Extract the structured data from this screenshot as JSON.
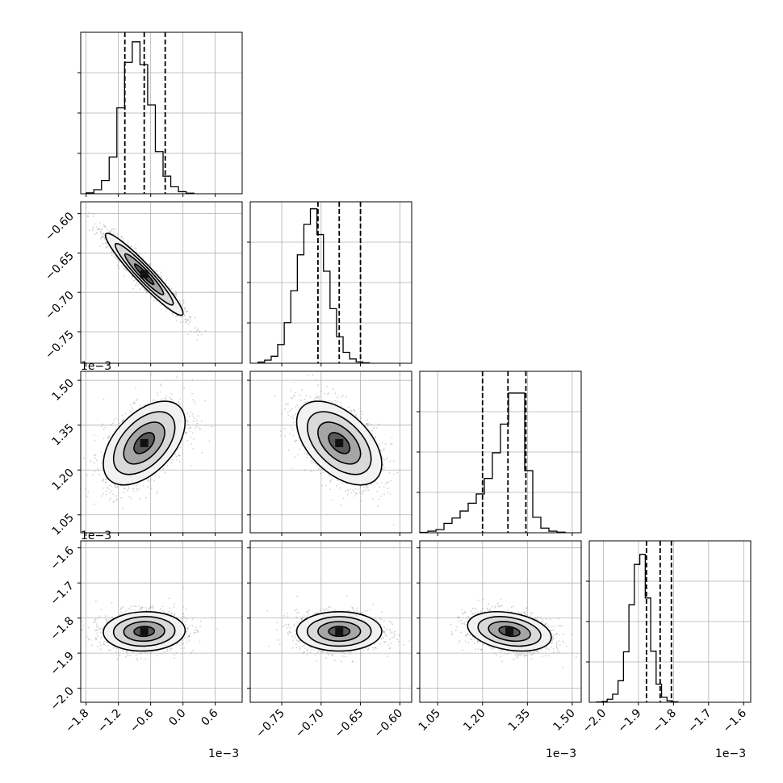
{
  "chart_data": {
    "type": "corner",
    "grid": true,
    "params": [
      {
        "xlim": [
          -1.9,
          1.1
        ],
        "ticks": [
          -1.8,
          -1.2,
          -0.6,
          0.0,
          0.6
        ],
        "tick_labels": [
          "−1.8",
          "−1.2",
          "−0.6",
          "0.0",
          "0.6"
        ],
        "offset": "1e−3"
      },
      {
        "xlim": [
          -0.79,
          -0.585
        ],
        "ticks": [
          -0.75,
          -0.7,
          -0.65,
          -0.6
        ],
        "tick_labels": [
          "−0.75",
          "−0.70",
          "−0.65",
          "−0.60"
        ],
        "offset": "1e−3"
      },
      {
        "xlim": [
          0.99,
          1.53
        ],
        "ticks": [
          1.05,
          1.2,
          1.35,
          1.5
        ],
        "tick_labels": [
          "1.05",
          "1.20",
          "1.35",
          "1.50"
        ],
        "offset": "1e−3"
      },
      {
        "xlim": [
          -2.04,
          -1.58
        ],
        "ticks": [
          -2.0,
          -1.9,
          -1.8,
          -1.7,
          -1.6
        ],
        "tick_labels": [
          "−2.0",
          "−1.9",
          "−1.8",
          "−1.7",
          "−1.6"
        ],
        "offset": "1e−3"
      }
    ],
    "histograms": [
      {
        "param": 0,
        "bin_edges_start": -1.8,
        "bin_width": 0.143,
        "counts": [
          12,
          55,
          180,
          500,
          1170,
          1790,
          2070,
          1760,
          1210,
          575,
          240,
          95,
          28,
          8
        ],
        "ymax": 2200,
        "quantiles": [
          -1.08,
          -0.72,
          -0.33
        ]
      },
      {
        "param": 1,
        "bin_edges_start": -0.78,
        "bin_width": 0.0083,
        "counts": [
          15,
          40,
          90,
          240,
          520,
          930,
          1390,
          1780,
          1980,
          1650,
          1180,
          700,
          340,
          140,
          55,
          18,
          6
        ],
        "ymax": 2070,
        "quantiles": [
          -0.704,
          -0.677,
          -0.65
        ]
      },
      {
        "param": 2,
        "bin_edges_start": 0.99,
        "bin_width": 0.027,
        "counts": [
          5,
          20,
          40,
          120,
          190,
          280,
          380,
          500,
          700,
          1030,
          1400,
          1800,
          1800,
          800,
          200,
          60,
          20,
          8
        ],
        "ymax": 2080,
        "quantiles": [
          1.2,
          1.285,
          1.345
        ]
      },
      {
        "param": 3,
        "bin_edges_start": -2.02,
        "bin_width": 0.0155,
        "counts": [
          4,
          12,
          45,
          120,
          320,
          750,
          1450,
          2050,
          2200,
          1550,
          760,
          270,
          75,
          22,
          7
        ],
        "ymax": 2400,
        "quantiles": [
          -1.877,
          -1.838,
          -1.806
        ]
      }
    ],
    "pairs": [
      {
        "x": 0,
        "y": 1,
        "center": [
          -0.72,
          -0.677
        ],
        "sigma": [
          0.36,
          0.026
        ],
        "rho": -0.95
      },
      {
        "x": 0,
        "y": 2,
        "center": [
          -0.72,
          1.29
        ],
        "sigma": [
          0.38,
          0.07
        ],
        "rho": 0.5
      },
      {
        "x": 1,
        "y": 2,
        "center": [
          -0.677,
          1.29
        ],
        "sigma": [
          0.027,
          0.07
        ],
        "rho": -0.5
      },
      {
        "x": 0,
        "y": 3,
        "center": [
          -0.72,
          -1.838
        ],
        "sigma": [
          0.38,
          0.028
        ],
        "rho": 0.05
      },
      {
        "x": 1,
        "y": 3,
        "center": [
          -0.677,
          -1.838
        ],
        "sigma": [
          0.027,
          0.028
        ],
        "rho": 0.0
      },
      {
        "x": 2,
        "y": 3,
        "center": [
          1.29,
          -1.838
        ],
        "sigma": [
          0.07,
          0.028
        ],
        "rho": -0.3
      }
    ],
    "contour_levels_sigma": [
      0.5,
      1.0,
      1.5,
      2.0
    ]
  }
}
